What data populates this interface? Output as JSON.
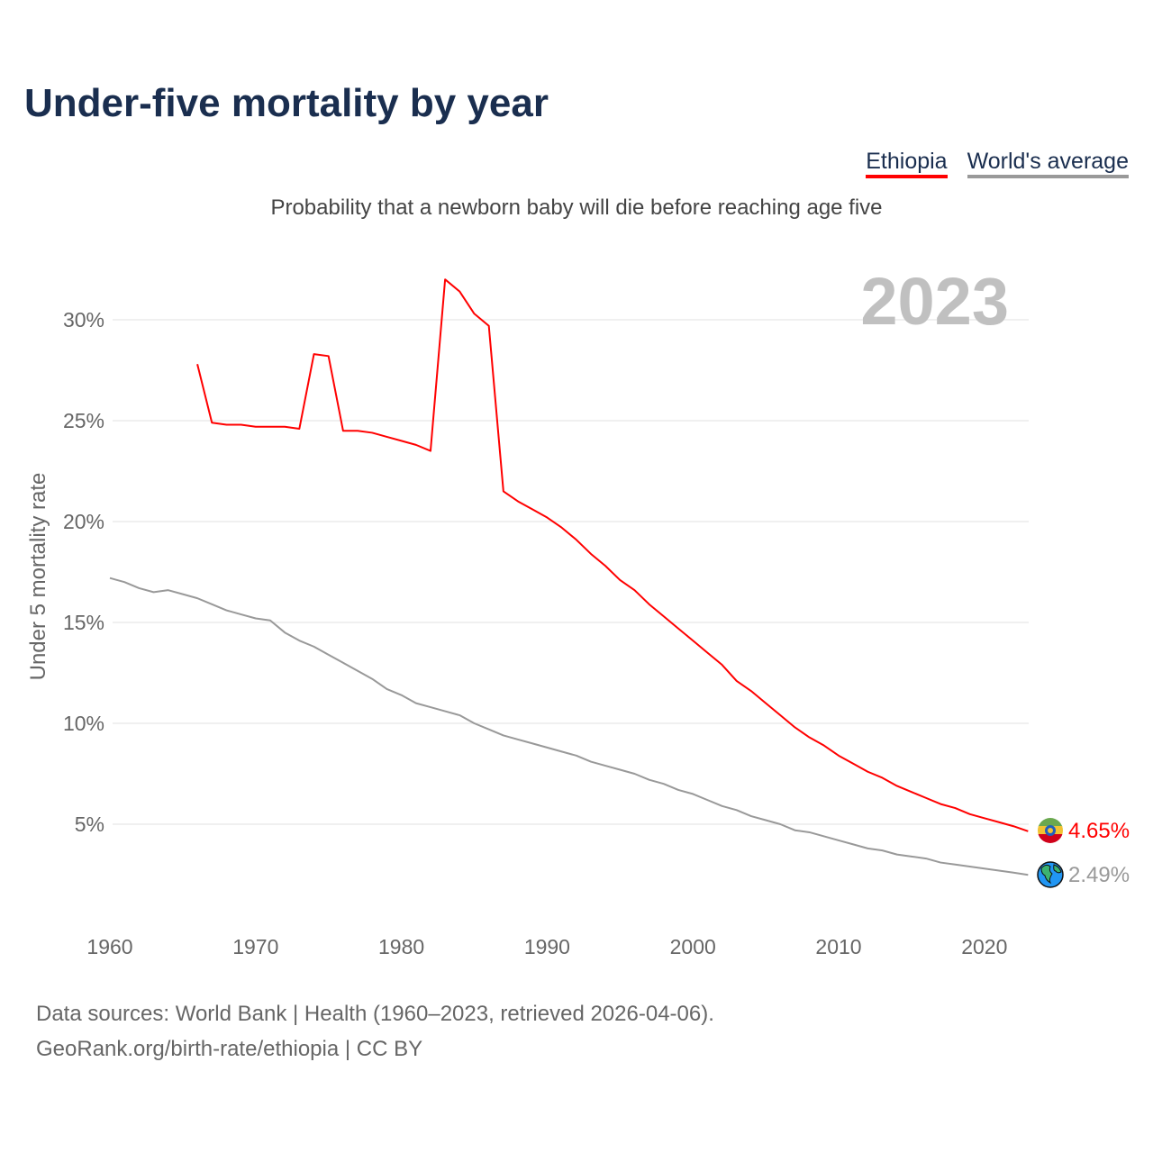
{
  "chart_data": {
    "type": "line",
    "title": "Under-five mortality by year",
    "subtitle": "Probability that a newborn baby will die before reaching age five",
    "ylabel": "Under 5 mortality rate",
    "xlabel": "",
    "year_label": "2023",
    "xlim": [
      1960,
      2023
    ],
    "ylim": [
      0,
      33
    ],
    "xticks": [
      1960,
      1970,
      1980,
      1990,
      2000,
      2010,
      2020
    ],
    "xtick_labels": [
      "1960",
      "1970",
      "1980",
      "1990",
      "2000",
      "2010",
      "2020"
    ],
    "yticks": [
      5,
      10,
      15,
      20,
      25,
      30
    ],
    "ytick_labels": [
      "5%",
      "10%",
      "15%",
      "20%",
      "25%",
      "30%"
    ],
    "grid": true,
    "legend_placement": "top-right",
    "series": [
      {
        "name": "Ethiopia",
        "color": "#ff0000",
        "end_label": "4.65%",
        "icon": "ethiopia-flag-icon",
        "x": [
          1966,
          1967,
          1968,
          1969,
          1970,
          1971,
          1972,
          1973,
          1974,
          1975,
          1976,
          1977,
          1978,
          1979,
          1980,
          1981,
          1982,
          1983,
          1984,
          1985,
          1986,
          1987,
          1988,
          1989,
          1990,
          1991,
          1992,
          1993,
          1994,
          1995,
          1996,
          1997,
          1998,
          1999,
          2000,
          2001,
          2002,
          2003,
          2004,
          2005,
          2006,
          2007,
          2008,
          2009,
          2010,
          2011,
          2012,
          2013,
          2014,
          2015,
          2016,
          2017,
          2018,
          2019,
          2020,
          2021,
          2022,
          2023
        ],
        "values": [
          27.8,
          24.9,
          24.8,
          24.8,
          24.7,
          24.7,
          24.7,
          24.6,
          28.3,
          28.2,
          24.5,
          24.5,
          24.4,
          24.2,
          24.0,
          23.8,
          23.5,
          32.0,
          31.4,
          30.3,
          29.7,
          21.5,
          21.0,
          20.6,
          20.2,
          19.7,
          19.1,
          18.4,
          17.8,
          17.1,
          16.6,
          15.9,
          15.3,
          14.7,
          14.1,
          13.5,
          12.9,
          12.1,
          11.6,
          11.0,
          10.4,
          9.8,
          9.3,
          8.9,
          8.4,
          8.0,
          7.6,
          7.3,
          6.9,
          6.6,
          6.3,
          6.0,
          5.8,
          5.5,
          5.3,
          5.1,
          4.9,
          4.65
        ]
      },
      {
        "name": "World's average",
        "color": "#999999",
        "end_label": "2.49%",
        "icon": "globe-icon",
        "x": [
          1960,
          1961,
          1962,
          1963,
          1964,
          1965,
          1966,
          1967,
          1968,
          1969,
          1970,
          1971,
          1972,
          1973,
          1974,
          1975,
          1976,
          1977,
          1978,
          1979,
          1980,
          1981,
          1982,
          1983,
          1984,
          1985,
          1986,
          1987,
          1988,
          1989,
          1990,
          1991,
          1992,
          1993,
          1994,
          1995,
          1996,
          1997,
          1998,
          1999,
          2000,
          2001,
          2002,
          2003,
          2004,
          2005,
          2006,
          2007,
          2008,
          2009,
          2010,
          2011,
          2012,
          2013,
          2014,
          2015,
          2016,
          2017,
          2018,
          2019,
          2020,
          2021,
          2022,
          2023
        ],
        "values": [
          17.2,
          17.0,
          16.7,
          16.5,
          16.6,
          16.4,
          16.2,
          15.9,
          15.6,
          15.4,
          15.2,
          15.1,
          14.5,
          14.1,
          13.8,
          13.4,
          13.0,
          12.6,
          12.2,
          11.7,
          11.4,
          11.0,
          10.8,
          10.6,
          10.4,
          10.0,
          9.7,
          9.4,
          9.2,
          9.0,
          8.8,
          8.6,
          8.4,
          8.1,
          7.9,
          7.7,
          7.5,
          7.2,
          7.0,
          6.7,
          6.5,
          6.2,
          5.9,
          5.7,
          5.4,
          5.2,
          5.0,
          4.7,
          4.6,
          4.4,
          4.2,
          4.0,
          3.8,
          3.7,
          3.5,
          3.4,
          3.3,
          3.1,
          3.0,
          2.9,
          2.8,
          2.7,
          2.6,
          2.49
        ]
      }
    ]
  },
  "footer": {
    "line1": "Data sources: World Bank | Health (1960–2023, retrieved 2026-04-06).",
    "line2": "GeoRank.org/birth-rate/ethiopia | CC BY"
  }
}
